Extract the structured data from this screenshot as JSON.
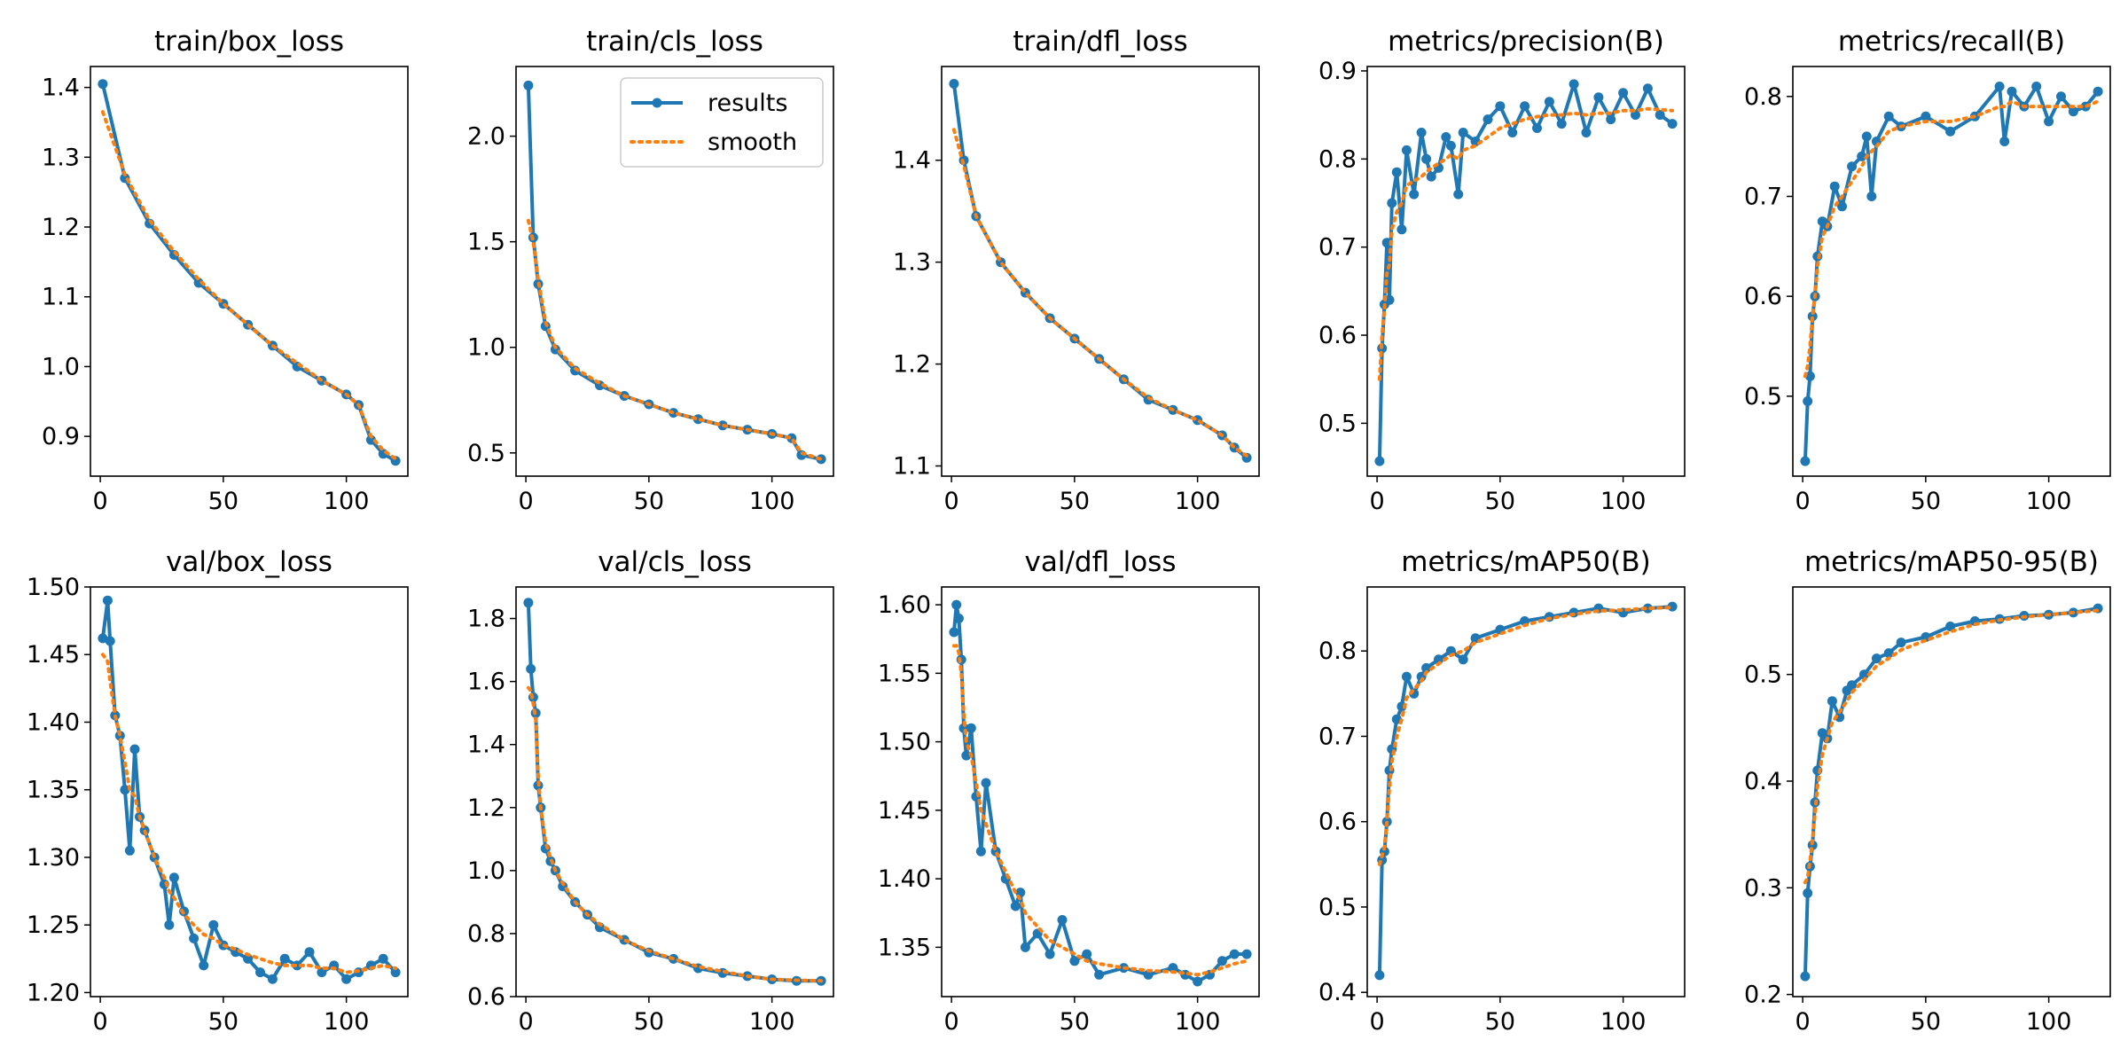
{
  "figure": {
    "background": "#ffffff",
    "series_colors": {
      "results": "#1f77b4",
      "smooth": "#ff7f0e"
    }
  },
  "legend": {
    "entries": [
      "results",
      "smooth"
    ],
    "placement": "top-right of train/cls_loss panel"
  },
  "chart_data": [
    {
      "type": "line",
      "title": "train/box_loss",
      "xlim": [
        -4,
        125
      ],
      "ylim": [
        0.843,
        1.43
      ],
      "xticks": [
        0,
        50,
        100
      ],
      "yticks": [
        0.9,
        1.0,
        1.1,
        1.2,
        1.3,
        1.4
      ],
      "x": [
        1,
        10,
        20,
        30,
        40,
        50,
        60,
        70,
        80,
        90,
        100,
        105,
        110,
        115,
        120
      ],
      "series": [
        {
          "name": "results",
          "values": [
            1.405,
            1.27,
            1.205,
            1.16,
            1.12,
            1.09,
            1.06,
            1.03,
            1.0,
            0.98,
            0.96,
            0.945,
            0.895,
            0.875,
            0.865
          ]
        },
        {
          "name": "smooth",
          "values": [
            1.365,
            1.275,
            1.21,
            1.165,
            1.125,
            1.09,
            1.06,
            1.03,
            1.005,
            0.98,
            0.96,
            0.945,
            0.9,
            0.88,
            0.868
          ]
        }
      ]
    },
    {
      "type": "line",
      "title": "train/cls_loss",
      "xlim": [
        -4,
        125
      ],
      "ylim": [
        0.39,
        2.33
      ],
      "xticks": [
        0,
        50,
        100
      ],
      "yticks": [
        0.5,
        1.0,
        1.5,
        2.0
      ],
      "x": [
        1,
        3,
        5,
        8,
        12,
        20,
        30,
        40,
        50,
        60,
        70,
        80,
        90,
        100,
        108,
        112,
        120
      ],
      "series": [
        {
          "name": "results",
          "values": [
            2.24,
            1.52,
            1.3,
            1.1,
            0.99,
            0.89,
            0.82,
            0.77,
            0.73,
            0.69,
            0.66,
            0.63,
            0.61,
            0.59,
            0.57,
            0.49,
            0.47
          ]
        },
        {
          "name": "smooth",
          "values": [
            1.6,
            1.5,
            1.32,
            1.12,
            1.0,
            0.9,
            0.83,
            0.77,
            0.73,
            0.69,
            0.66,
            0.63,
            0.61,
            0.59,
            0.57,
            0.5,
            0.47
          ]
        }
      ]
    },
    {
      "type": "line",
      "title": "train/dfl_loss",
      "xlim": [
        -4,
        125
      ],
      "ylim": [
        1.09,
        1.492
      ],
      "xticks": [
        0,
        50,
        100
      ],
      "yticks": [
        1.1,
        1.2,
        1.3,
        1.4
      ],
      "x": [
        1,
        5,
        10,
        20,
        30,
        40,
        50,
        60,
        70,
        80,
        90,
        100,
        110,
        115,
        120
      ],
      "series": [
        {
          "name": "results",
          "values": [
            1.475,
            1.4,
            1.345,
            1.3,
            1.27,
            1.245,
            1.225,
            1.205,
            1.185,
            1.165,
            1.155,
            1.145,
            1.13,
            1.118,
            1.108
          ]
        },
        {
          "name": "smooth",
          "values": [
            1.43,
            1.395,
            1.345,
            1.3,
            1.27,
            1.245,
            1.225,
            1.205,
            1.185,
            1.167,
            1.155,
            1.145,
            1.13,
            1.118,
            1.11
          ]
        }
      ]
    },
    {
      "type": "line",
      "title": "metrics/precision(B)",
      "xlim": [
        -4,
        125
      ],
      "ylim": [
        0.44,
        0.905
      ],
      "xticks": [
        0,
        50,
        100
      ],
      "yticks": [
        0.5,
        0.6,
        0.7,
        0.8,
        0.9
      ],
      "x": [
        1,
        2,
        3,
        4,
        5,
        6,
        8,
        10,
        12,
        15,
        18,
        20,
        22,
        25,
        28,
        30,
        33,
        35,
        40,
        45,
        50,
        55,
        60,
        65,
        70,
        75,
        80,
        85,
        90,
        95,
        100,
        105,
        110,
        115,
        120
      ],
      "series": [
        {
          "name": "results",
          "values": [
            0.457,
            0.585,
            0.635,
            0.705,
            0.64,
            0.75,
            0.785,
            0.72,
            0.81,
            0.76,
            0.83,
            0.8,
            0.78,
            0.79,
            0.825,
            0.815,
            0.76,
            0.83,
            0.82,
            0.845,
            0.86,
            0.83,
            0.86,
            0.835,
            0.865,
            0.84,
            0.885,
            0.83,
            0.87,
            0.845,
            0.875,
            0.85,
            0.88,
            0.85,
            0.84
          ]
        },
        {
          "name": "smooth",
          "values": [
            0.55,
            0.6,
            0.63,
            0.67,
            0.68,
            0.72,
            0.74,
            0.75,
            0.77,
            0.775,
            0.78,
            0.785,
            0.79,
            0.795,
            0.8,
            0.805,
            0.8,
            0.81,
            0.815,
            0.825,
            0.835,
            0.84,
            0.845,
            0.848,
            0.85,
            0.85,
            0.852,
            0.85,
            0.852,
            0.852,
            0.855,
            0.855,
            0.857,
            0.856,
            0.855
          ]
        }
      ]
    },
    {
      "type": "line",
      "title": "metrics/recall(B)",
      "xlim": [
        -4,
        125
      ],
      "ylim": [
        0.42,
        0.83
      ],
      "xticks": [
        0,
        50,
        100
      ],
      "yticks": [
        0.5,
        0.6,
        0.7,
        0.8
      ],
      "x": [
        1,
        2,
        3,
        4,
        5,
        6,
        8,
        10,
        13,
        16,
        20,
        24,
        26,
        28,
        30,
        35,
        40,
        50,
        60,
        70,
        80,
        82,
        85,
        90,
        95,
        100,
        105,
        110,
        115,
        120
      ],
      "series": [
        {
          "name": "results",
          "values": [
            0.435,
            0.495,
            0.52,
            0.58,
            0.6,
            0.64,
            0.675,
            0.67,
            0.71,
            0.69,
            0.73,
            0.74,
            0.76,
            0.7,
            0.755,
            0.78,
            0.77,
            0.78,
            0.765,
            0.78,
            0.81,
            0.755,
            0.805,
            0.79,
            0.81,
            0.775,
            0.8,
            0.785,
            0.79,
            0.805
          ]
        },
        {
          "name": "smooth",
          "values": [
            0.52,
            0.53,
            0.55,
            0.58,
            0.6,
            0.63,
            0.66,
            0.67,
            0.69,
            0.7,
            0.715,
            0.73,
            0.74,
            0.745,
            0.75,
            0.765,
            0.77,
            0.775,
            0.775,
            0.78,
            0.79,
            0.79,
            0.795,
            0.79,
            0.79,
            0.79,
            0.79,
            0.79,
            0.79,
            0.795
          ]
        }
      ]
    },
    {
      "type": "line",
      "title": "val/box_loss",
      "xlim": [
        -4,
        125
      ],
      "ylim": [
        1.197,
        1.5
      ],
      "xticks": [
        0,
        50,
        100
      ],
      "yticks": [
        1.2,
        1.25,
        1.3,
        1.35,
        1.4,
        1.45,
        1.5
      ],
      "x": [
        1,
        3,
        4,
        6,
        8,
        10,
        12,
        14,
        16,
        18,
        22,
        26,
        28,
        30,
        34,
        38,
        42,
        46,
        50,
        55,
        60,
        65,
        70,
        75,
        80,
        85,
        90,
        95,
        100,
        105,
        110,
        115,
        120
      ],
      "series": [
        {
          "name": "results",
          "values": [
            1.462,
            1.49,
            1.46,
            1.405,
            1.39,
            1.35,
            1.305,
            1.38,
            1.33,
            1.32,
            1.3,
            1.28,
            1.25,
            1.285,
            1.26,
            1.24,
            1.22,
            1.25,
            1.235,
            1.23,
            1.225,
            1.215,
            1.21,
            1.225,
            1.22,
            1.23,
            1.215,
            1.22,
            1.21,
            1.215,
            1.22,
            1.225,
            1.215
          ]
        },
        {
          "name": "smooth",
          "values": [
            1.45,
            1.445,
            1.43,
            1.405,
            1.39,
            1.37,
            1.35,
            1.345,
            1.33,
            1.32,
            1.3,
            1.285,
            1.275,
            1.27,
            1.258,
            1.25,
            1.243,
            1.24,
            1.235,
            1.232,
            1.228,
            1.225,
            1.222,
            1.22,
            1.22,
            1.22,
            1.218,
            1.218,
            1.215,
            1.216,
            1.218,
            1.22,
            1.218
          ]
        }
      ]
    },
    {
      "type": "line",
      "title": "val/cls_loss",
      "xlim": [
        -4,
        125
      ],
      "ylim": [
        0.6,
        1.9
      ],
      "xticks": [
        0,
        50,
        100
      ],
      "yticks": [
        0.6,
        0.8,
        1.0,
        1.2,
        1.4,
        1.6,
        1.8
      ],
      "x": [
        1,
        2,
        3,
        4,
        5,
        6,
        8,
        10,
        12,
        15,
        20,
        25,
        30,
        40,
        50,
        60,
        70,
        80,
        90,
        100,
        110,
        120
      ],
      "series": [
        {
          "name": "results",
          "values": [
            1.85,
            1.64,
            1.55,
            1.5,
            1.27,
            1.2,
            1.07,
            1.03,
            1.0,
            0.95,
            0.9,
            0.86,
            0.82,
            0.78,
            0.74,
            0.72,
            0.69,
            0.675,
            0.665,
            0.655,
            0.65,
            0.65
          ]
        },
        {
          "name": "smooth",
          "values": [
            1.58,
            1.57,
            1.53,
            1.48,
            1.3,
            1.2,
            1.09,
            1.04,
            1.0,
            0.96,
            0.9,
            0.86,
            0.83,
            0.78,
            0.745,
            0.72,
            0.695,
            0.68,
            0.665,
            0.655,
            0.652,
            0.65
          ]
        }
      ]
    },
    {
      "type": "line",
      "title": "val/dfl_loss",
      "xlim": [
        -4,
        125
      ],
      "ylim": [
        1.314,
        1.613
      ],
      "xticks": [
        0,
        50,
        100
      ],
      "yticks": [
        1.35,
        1.4,
        1.45,
        1.5,
        1.55,
        1.6
      ],
      "x": [
        1,
        2,
        3,
        4,
        5,
        6,
        8,
        10,
        12,
        14,
        18,
        22,
        26,
        28,
        30,
        35,
        40,
        45,
        50,
        55,
        60,
        70,
        80,
        90,
        95,
        100,
        105,
        110,
        115,
        120
      ],
      "series": [
        {
          "name": "results",
          "values": [
            1.58,
            1.6,
            1.59,
            1.56,
            1.51,
            1.49,
            1.51,
            1.46,
            1.42,
            1.47,
            1.42,
            1.4,
            1.38,
            1.39,
            1.35,
            1.36,
            1.345,
            1.37,
            1.34,
            1.345,
            1.33,
            1.335,
            1.33,
            1.335,
            1.33,
            1.325,
            1.33,
            1.34,
            1.345,
            1.345
          ]
        },
        {
          "name": "smooth",
          "values": [
            1.57,
            1.57,
            1.565,
            1.55,
            1.52,
            1.5,
            1.49,
            1.47,
            1.45,
            1.44,
            1.42,
            1.405,
            1.39,
            1.385,
            1.375,
            1.365,
            1.355,
            1.35,
            1.345,
            1.34,
            1.338,
            1.335,
            1.333,
            1.332,
            1.331,
            1.33,
            1.332,
            1.335,
            1.338,
            1.34
          ]
        }
      ]
    },
    {
      "type": "line",
      "title": "metrics/mAP50(B)",
      "xlim": [
        -4,
        125
      ],
      "ylim": [
        0.395,
        0.875
      ],
      "xticks": [
        0,
        50,
        100
      ],
      "yticks": [
        0.4,
        0.5,
        0.6,
        0.7,
        0.8
      ],
      "x": [
        1,
        2,
        3,
        4,
        5,
        6,
        8,
        10,
        12,
        15,
        18,
        20,
        25,
        30,
        35,
        40,
        50,
        60,
        70,
        80,
        90,
        100,
        110,
        120
      ],
      "series": [
        {
          "name": "results",
          "values": [
            0.42,
            0.555,
            0.565,
            0.6,
            0.66,
            0.685,
            0.72,
            0.735,
            0.77,
            0.75,
            0.77,
            0.78,
            0.79,
            0.8,
            0.79,
            0.815,
            0.825,
            0.835,
            0.84,
            0.845,
            0.85,
            0.845,
            0.85,
            0.852
          ]
        },
        {
          "name": "smooth",
          "values": [
            0.55,
            0.56,
            0.57,
            0.6,
            0.64,
            0.67,
            0.7,
            0.72,
            0.745,
            0.755,
            0.765,
            0.775,
            0.785,
            0.795,
            0.8,
            0.81,
            0.82,
            0.83,
            0.838,
            0.843,
            0.847,
            0.848,
            0.85,
            0.851
          ]
        }
      ]
    },
    {
      "type": "line",
      "title": "metrics/mAP50-95(B)",
      "xlim": [
        -4,
        125
      ],
      "ylim": [
        0.198,
        0.582
      ],
      "xticks": [
        0,
        50,
        100
      ],
      "yticks": [
        0.2,
        0.3,
        0.4,
        0.5
      ],
      "x": [
        1,
        2,
        3,
        4,
        5,
        6,
        8,
        10,
        12,
        15,
        18,
        20,
        25,
        30,
        35,
        40,
        50,
        60,
        70,
        80,
        90,
        100,
        110,
        120
      ],
      "series": [
        {
          "name": "results",
          "values": [
            0.217,
            0.295,
            0.32,
            0.34,
            0.38,
            0.41,
            0.445,
            0.44,
            0.475,
            0.46,
            0.485,
            0.49,
            0.5,
            0.515,
            0.52,
            0.53,
            0.535,
            0.545,
            0.55,
            0.552,
            0.555,
            0.556,
            0.558,
            0.562
          ]
        },
        {
          "name": "smooth",
          "values": [
            0.305,
            0.31,
            0.325,
            0.345,
            0.37,
            0.395,
            0.425,
            0.44,
            0.455,
            0.465,
            0.475,
            0.483,
            0.495,
            0.508,
            0.515,
            0.523,
            0.532,
            0.54,
            0.547,
            0.551,
            0.554,
            0.556,
            0.558,
            0.56
          ]
        }
      ]
    }
  ]
}
